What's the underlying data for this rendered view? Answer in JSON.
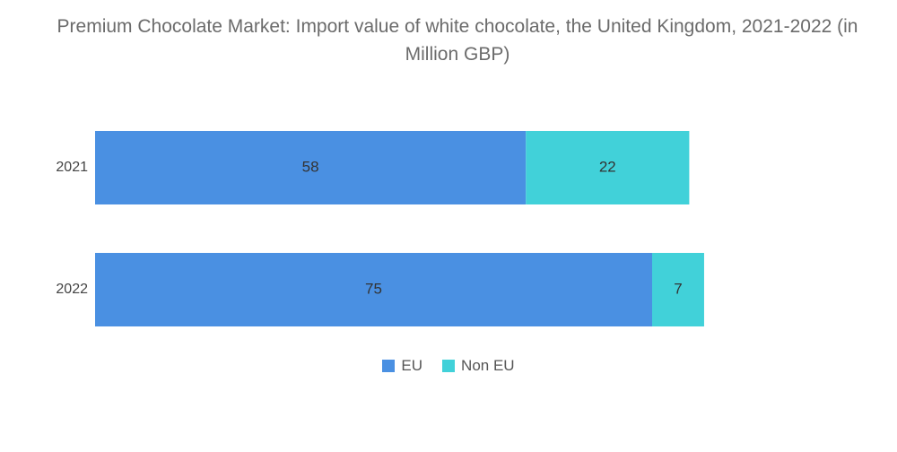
{
  "chart_data": {
    "type": "bar",
    "orientation": "horizontal",
    "stacked": true,
    "title": "Premium Chocolate Market: Import value of white chocolate, the United Kingdom, 2021-2022 (in Million GBP)",
    "categories": [
      "2021",
      "2022"
    ],
    "series": [
      {
        "name": "EU",
        "values": [
          58,
          75
        ],
        "color": "#4a90e2"
      },
      {
        "name": "Non EU",
        "values": [
          22,
          7
        ],
        "color": "#41d1d9"
      }
    ],
    "xlim": [
      0,
      100
    ],
    "xlabel": "",
    "ylabel": "",
    "grid": false,
    "legend_position": "bottom"
  }
}
